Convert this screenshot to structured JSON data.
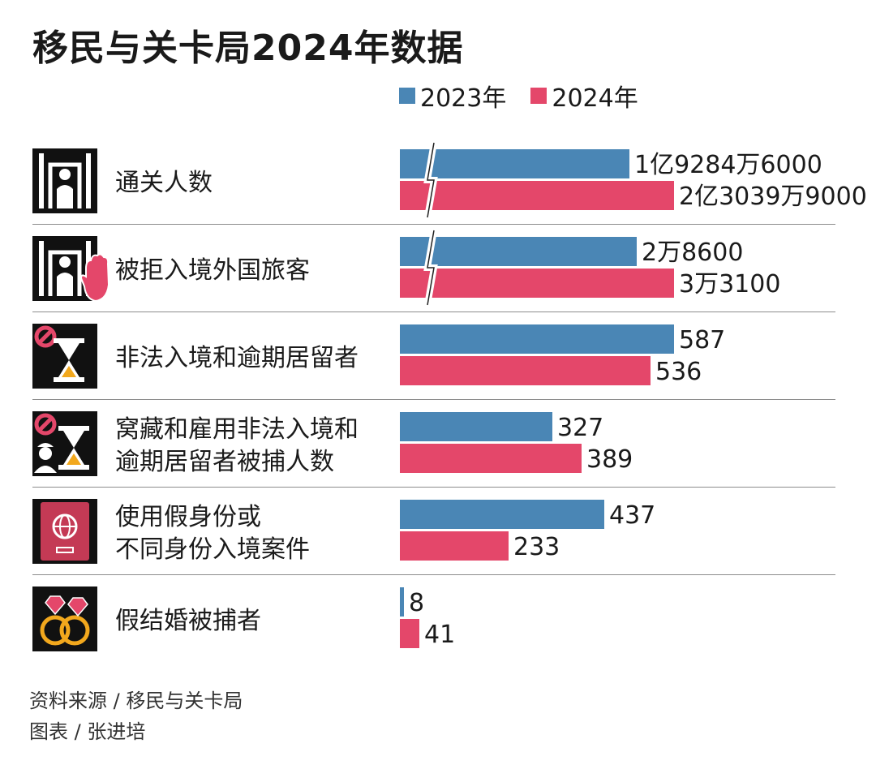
{
  "title": "移民与关卡局2024年数据",
  "footer": {
    "source": "资料来源 / 移民与关卡局",
    "credit": "图表 / 张进培"
  },
  "colors": {
    "blue": "#4a86b5",
    "pink": "#e4476a",
    "divider": "#8c8c8c"
  },
  "chart_data": {
    "type": "bar",
    "orientation": "horizontal",
    "legend_placement": "top",
    "series": [
      {
        "name": "2023年",
        "color": "#4a86b5"
      },
      {
        "name": "2024年",
        "color": "#e4476a"
      }
    ],
    "categories": [
      {
        "label": "通关人数",
        "icon": "gate-person-icon",
        "axis_break": true,
        "values": [
          192846000,
          230399000
        ],
        "value_labels": [
          "1亿9284万6000",
          "2亿3039万9000"
        ]
      },
      {
        "label": "被拒入境外国旅客",
        "icon": "gate-stop-hand-icon",
        "axis_break": true,
        "values": [
          28600,
          33100
        ],
        "value_labels": [
          "2万8600",
          "3万3100"
        ]
      },
      {
        "label": "非法入境和逾期居留者",
        "icon": "prohibited-hourglass-icon",
        "axis_break": false,
        "values": [
          587,
          536
        ],
        "value_labels": [
          "587",
          "536"
        ]
      },
      {
        "label": "窝藏和雇用非法入境和\n逾期居留者被捕人数",
        "icon": "prohibited-worker-hourglass-icon",
        "axis_break": false,
        "values": [
          327,
          389
        ],
        "value_labels": [
          "327",
          "389"
        ]
      },
      {
        "label": "使用假身份或\n不同身份入境案件",
        "icon": "passport-icon",
        "axis_break": false,
        "values": [
          437,
          233
        ],
        "value_labels": [
          "437",
          "233"
        ]
      },
      {
        "label": "假结婚被捕者",
        "icon": "wedding-rings-icon",
        "axis_break": false,
        "values": [
          8,
          41
        ],
        "value_labels": [
          "8",
          "41"
        ]
      }
    ]
  }
}
